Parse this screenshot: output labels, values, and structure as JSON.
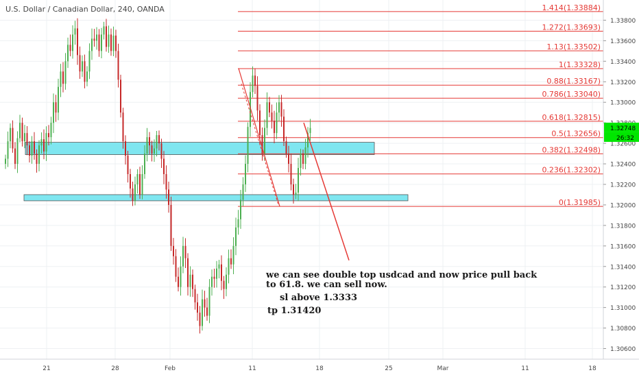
{
  "header": {
    "title": "U.S. Dollar / Canadian Dollar, 240, OANDA"
  },
  "chart_data": {
    "type": "candlestick",
    "ylim": [
      1.3055,
      1.3395
    ],
    "price_ticks": [
      "1.33800",
      "1.33600",
      "1.33400",
      "1.33200",
      "1.33000",
      "1.32800",
      "1.32600",
      "1.32400",
      "1.32200",
      "1.32000",
      "1.31800",
      "1.31600",
      "1.31400",
      "1.31200",
      "1.31000",
      "1.30800",
      "1.30600"
    ],
    "price_tick_values": [
      1.338,
      1.336,
      1.334,
      1.332,
      1.33,
      1.328,
      1.326,
      1.324,
      1.322,
      1.32,
      1.318,
      1.316,
      1.314,
      1.312,
      1.31,
      1.308,
      1.306
    ],
    "time_ticks": [
      "21",
      "28",
      "Feb",
      "11",
      "18",
      "25",
      "Mar",
      "11",
      "18"
    ],
    "current_price": {
      "label": "1.32748",
      "value": 1.32748,
      "timer": "26:32",
      "color": "#00e600"
    },
    "fibonacci": {
      "color": "#e53935",
      "levels": [
        {
          "label": "1.414(1.33884)",
          "value": 1.33884
        },
        {
          "label": "1.272(1.33693)",
          "value": 1.33693
        },
        {
          "label": "1.13(1.33502)",
          "value": 1.33502
        },
        {
          "label": "1(1.33328)",
          "value": 1.33328
        },
        {
          "label": "0.88(1.33167)",
          "value": 1.33167
        },
        {
          "label": "0.786(1.33040)",
          "value": 1.3304
        },
        {
          "label": "0.618(1.32815)",
          "value": 1.32815
        },
        {
          "label": "0.5(1.32656)",
          "value": 1.32656
        },
        {
          "label": "0.382(1.32498)",
          "value": 1.32498
        },
        {
          "label": "0.236(1.32302)",
          "value": 1.32302
        },
        {
          "label": "0(1.31985)",
          "value": 1.31985
        }
      ]
    },
    "zones": [
      {
        "name": "resistance-zone",
        "low": 1.3249,
        "high": 1.3261,
        "color": "#7fe6f0"
      },
      {
        "name": "support-zone",
        "low": 1.3204,
        "high": 1.321,
        "color": "#7fe6f0"
      }
    ],
    "up_color": "#4caf50",
    "down_color": "#c62828",
    "closes": [
      1.3245,
      1.3262,
      1.3275,
      1.3255,
      1.324,
      1.3265,
      1.328,
      1.3262,
      1.327,
      1.3258,
      1.3248,
      1.3262,
      1.325,
      1.324,
      1.3258,
      1.3264,
      1.3252,
      1.327,
      1.3266,
      1.328,
      1.33,
      1.329,
      1.3315,
      1.333,
      1.3318,
      1.334,
      1.3356,
      1.335,
      1.3366,
      1.3372,
      1.3346,
      1.333,
      1.334,
      1.332,
      1.333,
      1.335,
      1.3362,
      1.336,
      1.3366,
      1.335,
      1.3366,
      1.3374,
      1.3354,
      1.3366,
      1.335,
      1.3365,
      1.335,
      1.3322,
      1.329,
      1.3262,
      1.3248,
      1.323,
      1.3216,
      1.3204,
      1.322,
      1.323,
      1.321,
      1.323,
      1.325,
      1.3266,
      1.3258,
      1.325,
      1.3255,
      1.3268,
      1.326,
      1.3245,
      1.323,
      1.3215,
      1.32,
      1.316,
      1.315,
      1.313,
      1.312,
      1.314,
      1.316,
      1.3148,
      1.312,
      1.3132,
      1.3118,
      1.3105,
      1.3095,
      1.3082,
      1.3108,
      1.31,
      1.3092,
      1.312,
      1.313,
      1.3128,
      1.3138,
      1.3142,
      1.3126,
      1.3118,
      1.3132,
      1.3148,
      1.3142,
      1.316,
      1.3178,
      1.3186,
      1.3205,
      1.322,
      1.324,
      1.3276,
      1.331,
      1.3326,
      1.3316,
      1.3292,
      1.3268,
      1.325,
      1.3275,
      1.33,
      1.329,
      1.3282,
      1.327,
      1.329,
      1.33,
      1.3286,
      1.3262,
      1.325,
      1.324,
      1.322,
      1.321,
      1.3212,
      1.3236,
      1.325,
      1.324,
      1.3256,
      1.327,
      1.3275
    ]
  },
  "annotations": {
    "main": "we can see double top usdcad and now price pull back\nto 61.8. we can sell now.",
    "sl": "sl above 1.3333",
    "tp": "tp 1.31420"
  }
}
